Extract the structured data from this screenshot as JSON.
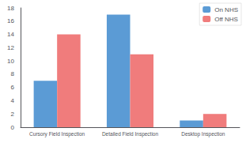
{
  "chart_data": {
    "type": "bar",
    "categories": [
      "Cursory Field Inspection",
      "Detailed Field Inspection",
      "Desktop Inspection"
    ],
    "series": [
      {
        "name": "On NHS",
        "color": "#5b9bd5",
        "values": [
          7,
          17,
          1
        ]
      },
      {
        "name": "Off NHS",
        "color": "#f07c7c",
        "values": [
          14,
          11,
          2
        ]
      }
    ],
    "ylim": [
      0,
      18
    ],
    "yticks": [
      0,
      2,
      4,
      6,
      8,
      10,
      12,
      14,
      16,
      18
    ],
    "grid": false,
    "legend": "upper right"
  }
}
